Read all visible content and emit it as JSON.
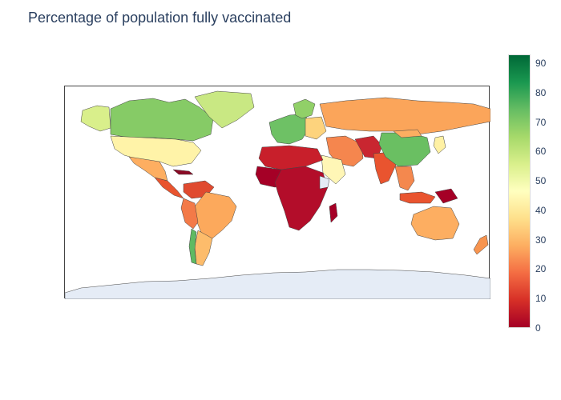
{
  "title": "Percentage of population fully vaccinated",
  "colorbar": {
    "min": 0,
    "max": 93,
    "ticks": [
      "0",
      "10",
      "20",
      "30",
      "40",
      "50",
      "60",
      "70",
      "80",
      "90"
    ],
    "colors": [
      "#a50026",
      "#d73027",
      "#f46d43",
      "#fdae61",
      "#fee08b",
      "#ffffbf",
      "#d9ef8b",
      "#a6d96a",
      "#66bd63",
      "#1a9850",
      "#006837"
    ]
  },
  "map": {
    "regions": [
      {
        "name": "Canada",
        "value": 74
      },
      {
        "name": "Greenland",
        "value": 68
      },
      {
        "name": "Alaska",
        "value": 55
      },
      {
        "name": "United States",
        "value": 53
      },
      {
        "name": "Mexico",
        "value": 30
      },
      {
        "name": "Central America",
        "value": 20
      },
      {
        "name": "South America",
        "value": 30
      },
      {
        "name": "Chile",
        "value": 71
      },
      {
        "name": "Western Europe",
        "value": 68
      },
      {
        "name": "Eastern Europe",
        "value": 40
      },
      {
        "name": "Russia",
        "value": 28
      },
      {
        "name": "China",
        "value": 72
      },
      {
        "name": "India",
        "value": 12
      },
      {
        "name": "Middle East",
        "value": 25
      },
      {
        "name": "North Africa",
        "value": 12
      },
      {
        "name": "Sub-Saharan Africa",
        "value": 2
      },
      {
        "name": "Southeast Asia",
        "value": 18
      },
      {
        "name": "Australia",
        "value": 30
      },
      {
        "name": "Japan",
        "value": 45
      }
    ]
  }
}
